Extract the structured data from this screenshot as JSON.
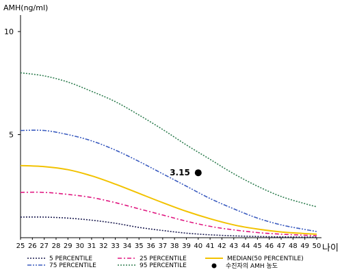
{
  "chart_data": {
    "type": "line",
    "ylabel": "AMH(ng/ml)",
    "xlabel": "나이",
    "xlim": [
      25,
      50
    ],
    "ylim": [
      0,
      10.8
    ],
    "x_ticks": [
      25,
      26,
      27,
      28,
      29,
      30,
      31,
      32,
      33,
      34,
      35,
      36,
      37,
      38,
      39,
      40,
      41,
      42,
      43,
      44,
      45,
      46,
      47,
      48,
      49,
      50
    ],
    "x_tick_labels": [
      "25",
      "26",
      "27",
      "28",
      "29",
      "30",
      "31",
      "32",
      "33",
      "34",
      "35",
      "36",
      "37",
      "38",
      "39",
      "40",
      "41",
      "42",
      "43",
      "44",
      "45",
      "46",
      "47",
      "48",
      "49",
      "50"
    ],
    "y_ticks": [
      5,
      10
    ],
    "y_tick_labels": [
      "5",
      "10"
    ],
    "grid": false,
    "legend_position": "bottom",
    "x": [
      25,
      27,
      29,
      31,
      33,
      35,
      37,
      39,
      41,
      43,
      45,
      47,
      49,
      50
    ],
    "series": [
      {
        "name": "5 PERCENTILE",
        "color": "#1a1a4f",
        "dash": "2,2",
        "values": [
          1.0,
          1.0,
          0.95,
          0.85,
          0.7,
          0.5,
          0.35,
          0.22,
          0.14,
          0.09,
          0.06,
          0.04,
          0.03,
          0.03
        ]
      },
      {
        "name": "25 PERCENTILE",
        "color": "#e0157f",
        "dash": "6,3,2,3",
        "values": [
          2.2,
          2.2,
          2.1,
          1.95,
          1.7,
          1.4,
          1.1,
          0.8,
          0.55,
          0.38,
          0.25,
          0.17,
          0.12,
          0.1
        ]
      },
      {
        "name": "MEDIAN(50 PERCENTILE)",
        "color": "#f2c200",
        "dash": "",
        "values": [
          3.5,
          3.45,
          3.3,
          3.0,
          2.6,
          2.15,
          1.7,
          1.28,
          0.92,
          0.62,
          0.42,
          0.28,
          0.2,
          0.17
        ]
      },
      {
        "name": "75 PERCENTILE",
        "color": "#3a5bbf",
        "dash": "6,2,2,2,2,2",
        "values": [
          5.2,
          5.2,
          5.0,
          4.7,
          4.25,
          3.7,
          3.1,
          2.5,
          1.9,
          1.4,
          0.95,
          0.62,
          0.4,
          0.3
        ]
      },
      {
        "name": "95 PERCENTILE",
        "color": "#2e7d4f",
        "dash": "2,2",
        "values": [
          8.0,
          7.85,
          7.55,
          7.1,
          6.6,
          5.95,
          5.25,
          4.5,
          3.8,
          3.1,
          2.5,
          2.0,
          1.65,
          1.5
        ]
      }
    ],
    "point": {
      "name": "수진자의 AMH 농도",
      "x": 40,
      "y": 3.15,
      "label": "3.15",
      "color": "#000000"
    }
  }
}
